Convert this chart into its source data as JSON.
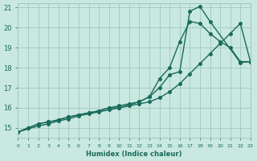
{
  "xlabel": "Humidex (Indice chaleur)",
  "ylabel": "",
  "bg_color": "#c8e8e0",
  "grid_color": "#a0c8c0",
  "line_color": "#1a6b5a",
  "xlim": [
    0,
    23
  ],
  "ylim": [
    14.5,
    21.2
  ],
  "xticks": [
    0,
    1,
    2,
    3,
    4,
    5,
    6,
    7,
    8,
    9,
    10,
    11,
    12,
    13,
    14,
    15,
    16,
    17,
    18,
    19,
    20,
    21,
    22,
    23
  ],
  "yticks": [
    15,
    16,
    17,
    18,
    19,
    20,
    21
  ],
  "line1_x": [
    0,
    1,
    2,
    3,
    4,
    5,
    6,
    7,
    8,
    9,
    10,
    11,
    12,
    13,
    14,
    15,
    16,
    17,
    18,
    19,
    20,
    21,
    22,
    23
  ],
  "line1_y": [
    14.8,
    15.0,
    15.2,
    15.3,
    15.4,
    15.55,
    15.65,
    15.75,
    15.85,
    16.0,
    16.0,
    16.1,
    16.2,
    16.3,
    16.5,
    16.8,
    17.2,
    17.7,
    18.2,
    18.7,
    19.2,
    19.7,
    20.2,
    18.3
  ],
  "line2_x": [
    0,
    1,
    2,
    3,
    4,
    5,
    6,
    7,
    8,
    9,
    10,
    11,
    12,
    13,
    14,
    15,
    16,
    17,
    18,
    19,
    20,
    21,
    22,
    23
  ],
  "line2_y": [
    14.8,
    15.0,
    15.2,
    15.3,
    15.4,
    15.55,
    15.65,
    15.75,
    15.85,
    16.0,
    16.1,
    16.2,
    16.3,
    16.55,
    17.45,
    18.0,
    19.3,
    20.3,
    20.2,
    19.7,
    19.3,
    19.0,
    18.3,
    18.3
  ],
  "line3_x": [
    0,
    2,
    3,
    4,
    5,
    6,
    7,
    8,
    9,
    10,
    11,
    12,
    13,
    14,
    15,
    16,
    17,
    18,
    19,
    22,
    23
  ],
  "line3_y": [
    14.8,
    15.1,
    15.2,
    15.35,
    15.45,
    15.6,
    15.7,
    15.8,
    15.9,
    16.0,
    16.15,
    16.3,
    16.55,
    17.0,
    17.65,
    17.8,
    20.8,
    21.05,
    20.3,
    18.25,
    18.3
  ]
}
